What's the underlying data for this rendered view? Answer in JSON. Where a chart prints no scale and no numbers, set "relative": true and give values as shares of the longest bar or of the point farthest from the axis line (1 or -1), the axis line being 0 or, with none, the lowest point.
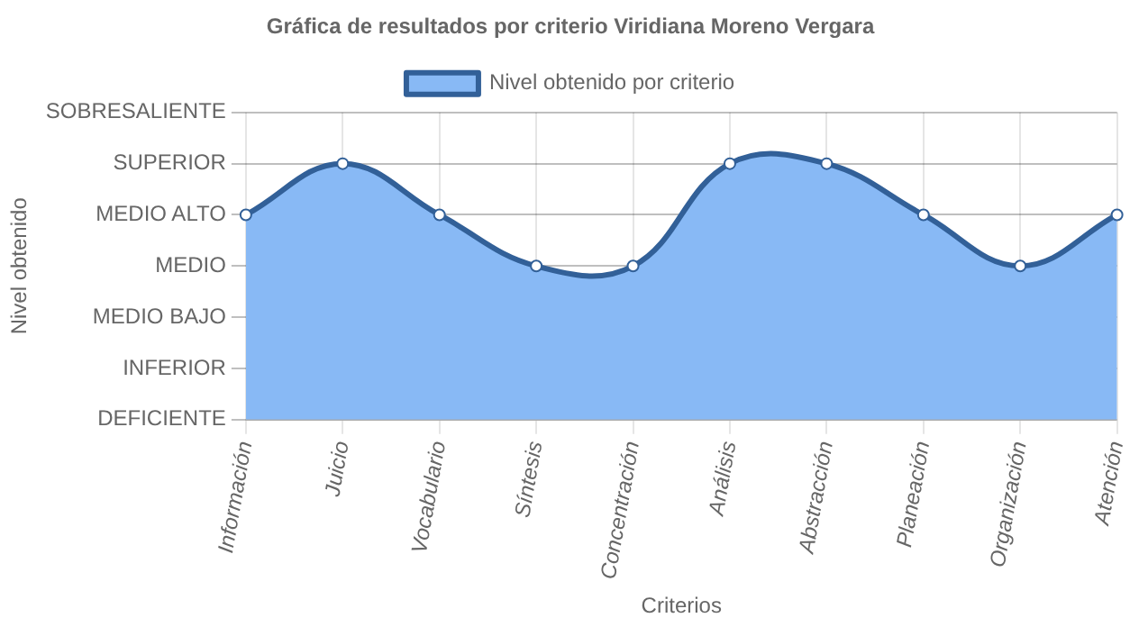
{
  "chart_data": {
    "type": "area",
    "title": "Gráfica de resultados por criterio Viridiana Moreno Vergara",
    "xlabel": "Criterios",
    "annotations": [
      "Nivel obtenido"
    ],
    "relative": true,
    "categories": [
      "Información",
      "Juicio",
      "Vocabulario",
      "Síntesis",
      "Concentración",
      "Análisis",
      "Abstracción",
      "Planeación",
      "Organización",
      "Atención"
    ],
    "y_categories": [
      "SOBRESALIENTE",
      "SUPERIOR",
      "MEDIO ALTO",
      "MEDIO",
      "MEDIO BAJO",
      "INFERIOR",
      "DEFICIENTE"
    ],
    "series": [
      {
        "name": "Nivel obtenido por criterio",
        "color": "#88b9f5",
        "values": [
          0.8,
          1,
          0.8,
          0.6,
          0.6,
          1,
          1,
          0.8,
          0.6,
          0.8
        ]
      }
    ],
    "grid": true,
    "legend": "top",
    "marker": "circle",
    "line_style": "solid"
  }
}
